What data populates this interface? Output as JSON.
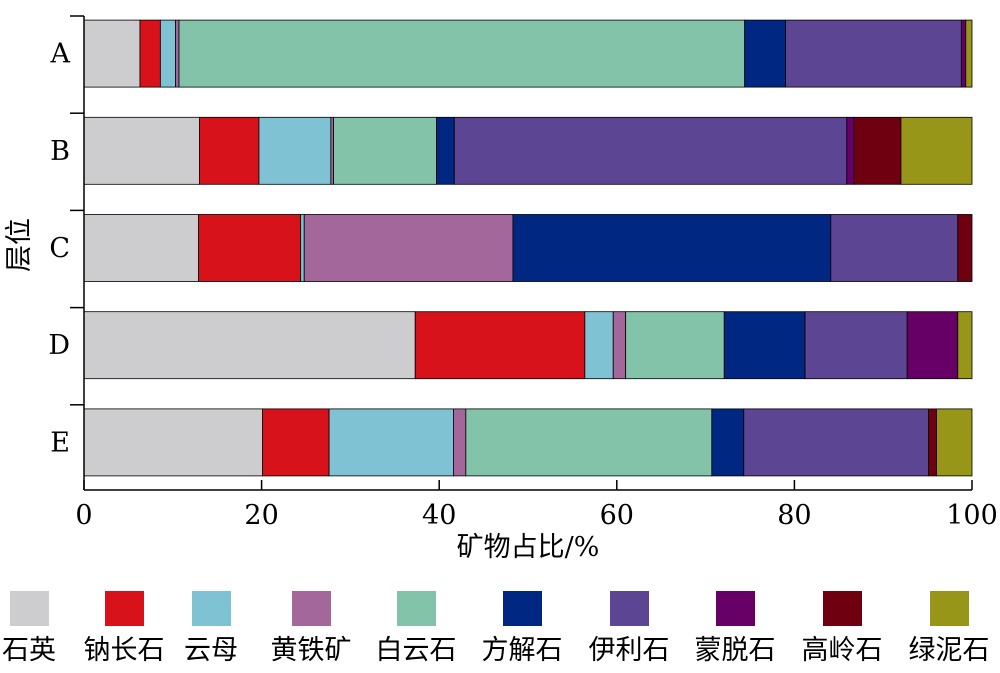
{
  "chart_data": {
    "type": "bar",
    "orientation": "horizontal",
    "stacked": true,
    "categories": [
      "A",
      "B",
      "C",
      "D",
      "E"
    ],
    "series": [
      {
        "name": "石英",
        "color": "#cdcdcf",
        "values": [
          6.3,
          13.0,
          12.9,
          37.3,
          20.1
        ]
      },
      {
        "name": "钠长石",
        "color": "#d7121a",
        "values": [
          2.3,
          6.7,
          11.5,
          19.1,
          7.5
        ]
      },
      {
        "name": "云母",
        "color": "#7ec2d3",
        "values": [
          1.7,
          8.1,
          0.4,
          3.2,
          14.0
        ]
      },
      {
        "name": "黄铁矿",
        "color": "#a4679c",
        "values": [
          0.4,
          0.3,
          23.5,
          1.4,
          1.4
        ]
      },
      {
        "name": "白云石",
        "color": "#82c3aa",
        "values": [
          63.7,
          11.6,
          0.0,
          11.1,
          27.7
        ]
      },
      {
        "name": "方解石",
        "color": "#002781",
        "values": [
          4.6,
          2.0,
          35.8,
          9.1,
          3.6
        ]
      },
      {
        "name": "伊利石",
        "color": "#5c4694",
        "values": [
          19.8,
          44.2,
          14.3,
          11.5,
          20.8
        ]
      },
      {
        "name": "蒙脱石",
        "color": "#670066",
        "values": [
          0.5,
          0.8,
          0.0,
          5.7,
          0.0
        ]
      },
      {
        "name": "高岭石",
        "color": "#6e000f",
        "values": [
          0.0,
          5.3,
          1.6,
          0.0,
          0.9
        ]
      },
      {
        "name": "绿泥石",
        "color": "#989618",
        "values": [
          0.7,
          8.0,
          0.0,
          1.6,
          4.0
        ]
      }
    ],
    "xlabel": "矿物占比/%",
    "ylabel": "层位",
    "xlim": [
      0,
      100
    ],
    "xticks": [
      "0",
      "20",
      "40",
      "60",
      "80",
      "100"
    ],
    "grid": false,
    "legend_position": "bottom"
  }
}
